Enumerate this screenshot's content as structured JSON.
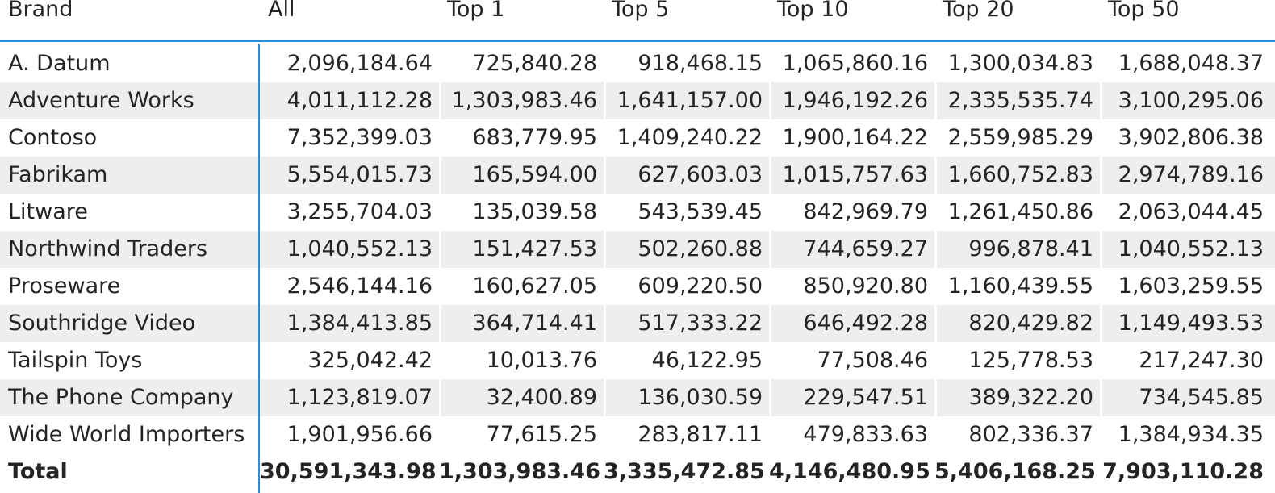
{
  "headers": [
    "Brand",
    "All",
    "Top 1",
    "Top 5",
    "Top 10",
    "Top 20",
    "Top 50"
  ],
  "rows": [
    {
      "brand": "A. Datum",
      "values": [
        "2,096,184.64",
        "725,840.28",
        "918,468.15",
        "1,065,860.16",
        "1,300,034.83",
        "1,688,048.37"
      ]
    },
    {
      "brand": "Adventure Works",
      "values": [
        "4,011,112.28",
        "1,303,983.46",
        "1,641,157.00",
        "1,946,192.26",
        "2,335,535.74",
        "3,100,295.06"
      ]
    },
    {
      "brand": "Contoso",
      "values": [
        "7,352,399.03",
        "683,779.95",
        "1,409,240.22",
        "1,900,164.22",
        "2,559,985.29",
        "3,902,806.38"
      ]
    },
    {
      "brand": "Fabrikam",
      "values": [
        "5,554,015.73",
        "165,594.00",
        "627,603.03",
        "1,015,757.63",
        "1,660,752.83",
        "2,974,789.16"
      ]
    },
    {
      "brand": "Litware",
      "values": [
        "3,255,704.03",
        "135,039.58",
        "543,539.45",
        "842,969.79",
        "1,261,450.86",
        "2,063,044.45"
      ]
    },
    {
      "brand": "Northwind Traders",
      "values": [
        "1,040,552.13",
        "151,427.53",
        "502,260.88",
        "744,659.27",
        "996,878.41",
        "1,040,552.13"
      ]
    },
    {
      "brand": "Proseware",
      "values": [
        "2,546,144.16",
        "160,627.05",
        "609,220.50",
        "850,920.80",
        "1,160,439.55",
        "1,603,259.55"
      ]
    },
    {
      "brand": "Southridge Video",
      "values": [
        "1,384,413.85",
        "364,714.41",
        "517,333.22",
        "646,492.28",
        "820,429.82",
        "1,149,493.53"
      ]
    },
    {
      "brand": "Tailspin Toys",
      "values": [
        "325,042.42",
        "10,013.76",
        "46,122.95",
        "77,508.46",
        "125,778.53",
        "217,247.30"
      ]
    },
    {
      "brand": "The Phone Company",
      "values": [
        "1,123,819.07",
        "32,400.89",
        "136,030.59",
        "229,547.51",
        "389,322.20",
        "734,545.85"
      ]
    },
    {
      "brand": "Wide World Importers",
      "values": [
        "1,901,956.66",
        "77,615.25",
        "283,817.11",
        "479,833.63",
        "802,336.37",
        "1,384,934.35"
      ]
    }
  ],
  "total": {
    "label": "Total",
    "values": [
      "30,591,343.98",
      "1,303,983.46",
      "3,335,472.85",
      "4,146,480.95",
      "5,406,168.25",
      "7,903,110.28"
    ]
  },
  "colors": {
    "accent": "#2b8ddb",
    "band": "#eeeeee",
    "text": "#252423"
  }
}
